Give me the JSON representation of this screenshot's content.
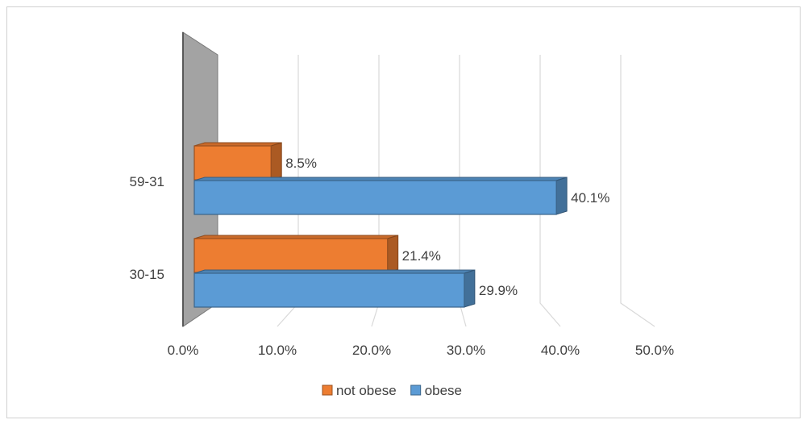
{
  "chart_data": {
    "type": "bar",
    "orientation": "horizontal",
    "style": "3d-clustered",
    "title": "",
    "xlabel": "",
    "ylabel": "",
    "categories": [
      "30-15",
      "59-31"
    ],
    "series": [
      {
        "name": "not obese",
        "values": [
          21.4,
          8.5
        ],
        "color": "#ED7D31"
      },
      {
        "name": "obese",
        "values": [
          29.9,
          40.1
        ],
        "color": "#5B9BD5"
      }
    ],
    "data_labels": [
      [
        "21.4%",
        "8.5%"
      ],
      [
        "29.9%",
        "40.1%"
      ]
    ],
    "xlim": [
      0,
      50
    ],
    "x_ticks": [
      "0.0%",
      "10.0%",
      "20.0%",
      "30.0%",
      "40.0%",
      "50.0%"
    ],
    "x_tick_values": [
      0,
      10,
      20,
      30,
      40,
      50
    ],
    "grid": true,
    "legend": "bottom"
  }
}
